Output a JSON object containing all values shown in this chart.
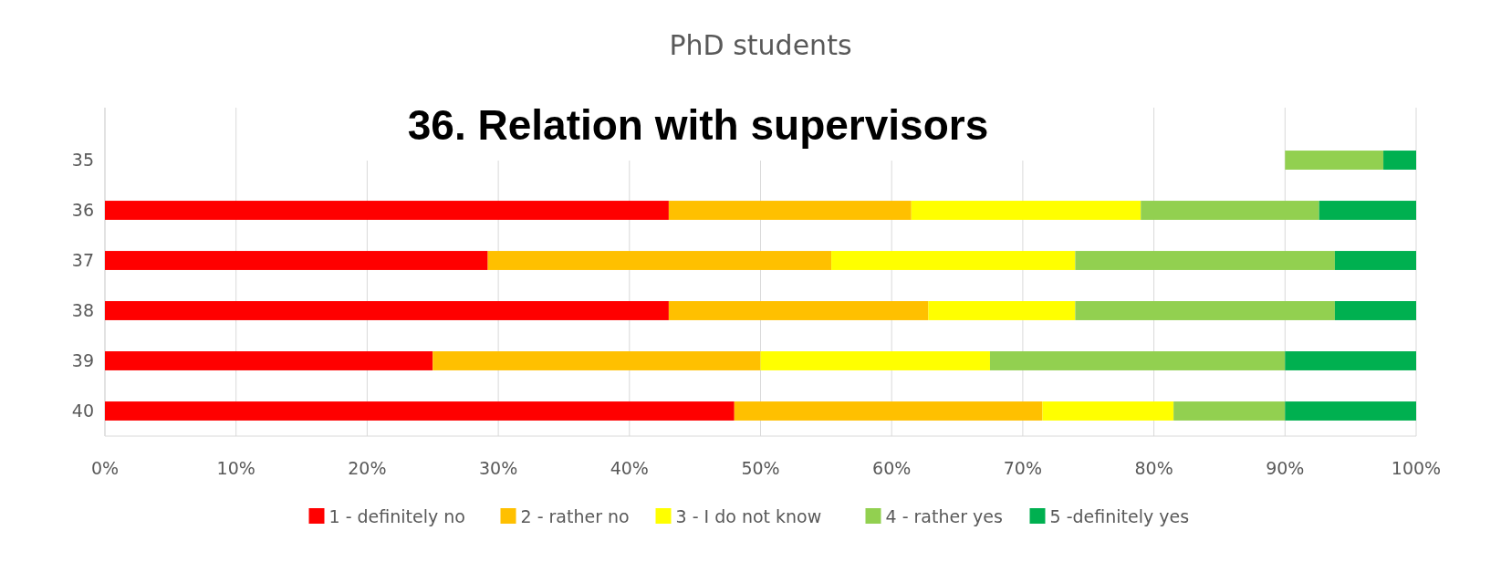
{
  "chart_data": {
    "type": "bar",
    "orientation": "horizontal",
    "stacked": true,
    "title": "PhD students",
    "annotations": [
      "36. Relation with supervisors"
    ],
    "categories": [
      "35",
      "36",
      "37",
      "38",
      "39",
      "40"
    ],
    "series": [
      {
        "name": "1 - definitely no",
        "color": "#ff0000",
        "values": [
          null,
          43,
          29.2,
          43,
          25,
          48
        ]
      },
      {
        "name": "2 - rather no",
        "color": "#ffc000",
        "values": [
          null,
          18.5,
          26.2,
          19.8,
          25,
          23.5
        ]
      },
      {
        "name": "3 - I do not know",
        "color": "#ffff00",
        "values": [
          null,
          17.5,
          18.6,
          11.2,
          17.5,
          10
        ]
      },
      {
        "name": "4 - rather yes",
        "color": "#92d050",
        "values": [
          7.5,
          13.6,
          19.8,
          19.8,
          22.5,
          8.5
        ],
        "base": [
          90,
          null,
          null,
          null,
          null,
          null
        ]
      },
      {
        "name": "5 -definitely yes",
        "color": "#00b050",
        "values": [
          2.5,
          7.4,
          6.2,
          6.2,
          10,
          10
        ],
        "base": [
          97.5,
          null,
          null,
          null,
          null,
          null
        ]
      }
    ],
    "xlim": [
      0,
      100
    ],
    "xticks": [
      {
        "value": 0,
        "label": "0%"
      },
      {
        "value": 10,
        "label": "10%"
      },
      {
        "value": 20,
        "label": "20%"
      },
      {
        "value": 30,
        "label": "30%"
      },
      {
        "value": 40,
        "label": "40%"
      },
      {
        "value": 50,
        "label": "50%"
      },
      {
        "value": 60,
        "label": "60%"
      },
      {
        "value": 70,
        "label": "70%"
      },
      {
        "value": 80,
        "label": "80%"
      },
      {
        "value": 90,
        "label": "90%"
      },
      {
        "value": 100,
        "label": "100%"
      }
    ],
    "grid": "x",
    "legend": "bottom"
  }
}
